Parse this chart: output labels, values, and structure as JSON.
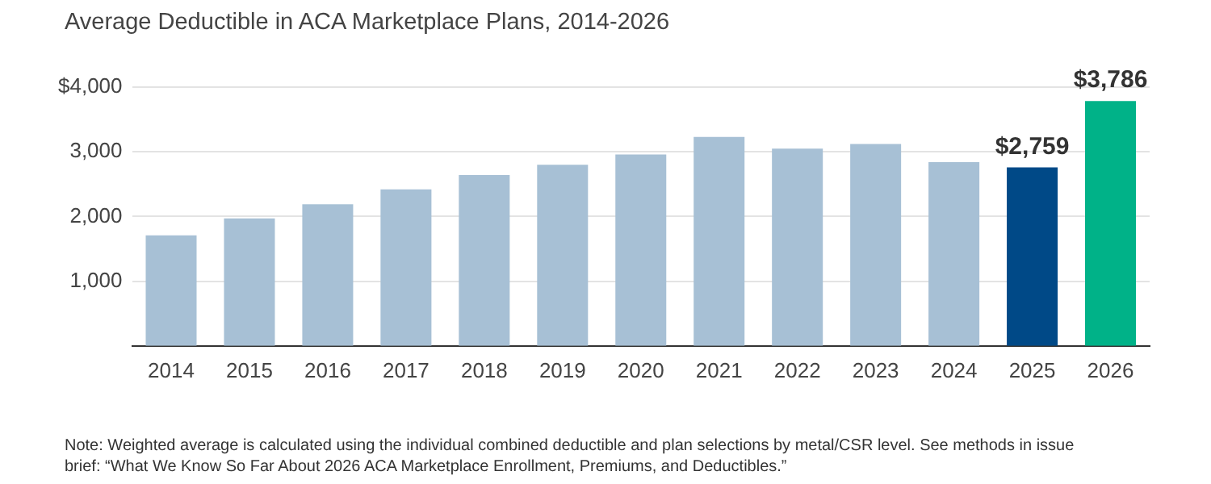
{
  "chart_data": {
    "type": "bar",
    "title": "Average Deductible in ACA Marketplace Plans, 2014-2026",
    "categories": [
      "2014",
      "2015",
      "2016",
      "2017",
      "2018",
      "2019",
      "2020",
      "2021",
      "2022",
      "2023",
      "2024",
      "2025",
      "2026"
    ],
    "values": [
      1710,
      1970,
      2190,
      2420,
      2640,
      2800,
      2960,
      3230,
      3050,
      3120,
      2840,
      2759,
      3786
    ],
    "colors": [
      "#a7c0d5",
      "#a7c0d5",
      "#a7c0d5",
      "#a7c0d5",
      "#a7c0d5",
      "#a7c0d5",
      "#a7c0d5",
      "#a7c0d5",
      "#a7c0d5",
      "#a7c0d5",
      "#a7c0d5",
      "#004987",
      "#00b288"
    ],
    "value_labels": [
      null,
      null,
      null,
      null,
      null,
      null,
      null,
      null,
      null,
      null,
      null,
      "$2,759",
      "$3,786"
    ],
    "ylim": [
      0,
      4000
    ],
    "yticks": [
      {
        "value": 1000,
        "label": "1,000"
      },
      {
        "value": 2000,
        "label": "2,000"
      },
      {
        "value": 3000,
        "label": "3,000"
      },
      {
        "value": 4000,
        "label": "$4,000"
      }
    ],
    "grid": "y",
    "annotations": [
      "Note: Weighted average is calculated using the individual combined deductible and plan selections by metal/CSR level. See methods in issue brief: “What We Know So Far About 2026 ACA Marketplace Enrollment, Premiums, and Deductibles.”"
    ]
  }
}
